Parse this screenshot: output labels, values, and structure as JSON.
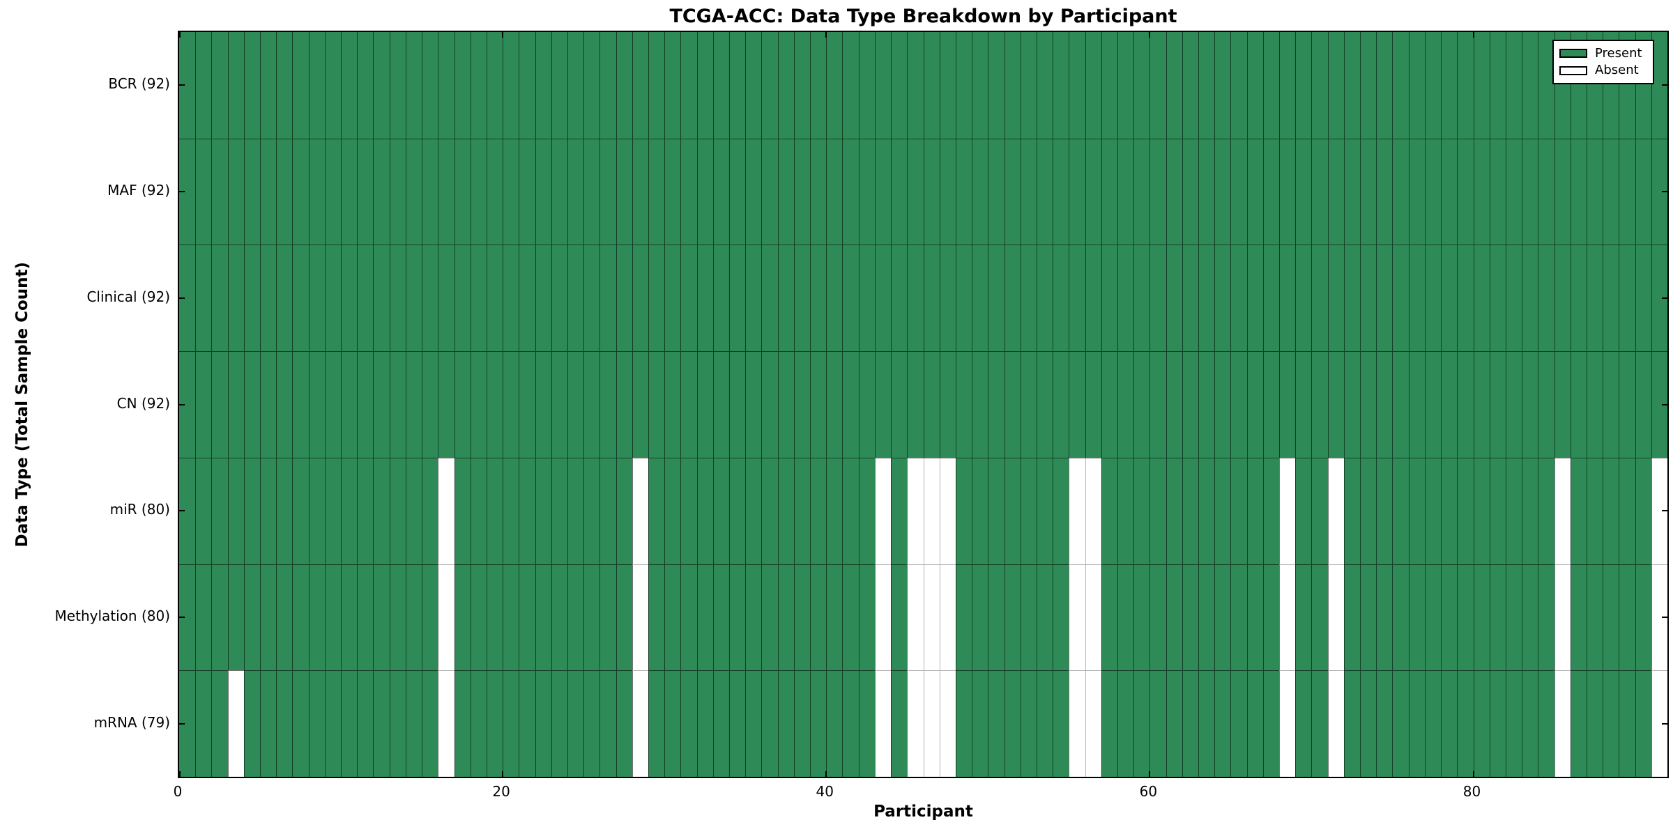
{
  "title": "TCGA-ACC: Data Type Breakdown by Participant",
  "xlabel": "Participant",
  "ylabel": "Data Type (Total Sample Count)",
  "legend": {
    "items": [
      {
        "label": "Present",
        "color": "#2e8b57"
      },
      {
        "label": "Absent",
        "color": "#ffffff"
      }
    ]
  },
  "colors": {
    "present_fill": "#2e8b57",
    "absent_fill": "#ffffff",
    "present_edge": "rgba(0,0,0,0.55)",
    "absent_edge": "#b5b5b5",
    "axis": "#000000"
  },
  "chart_data": {
    "type": "heatmap",
    "xlabel": "Participant",
    "ylabel": "Data Type (Total Sample Count)",
    "n_participants": 92,
    "x_ticks": [
      0,
      20,
      40,
      60,
      80
    ],
    "x_range": [
      0,
      92
    ],
    "grid": true,
    "legend_position": "upper right",
    "value_encoding": {
      "present": "green filled cell",
      "absent": "white cell"
    },
    "rows": [
      {
        "label": "BCR (92)",
        "data_type": "BCR",
        "present_count": 92,
        "absent_participants": []
      },
      {
        "label": "MAF (92)",
        "data_type": "MAF",
        "present_count": 92,
        "absent_participants": []
      },
      {
        "label": "Clinical (92)",
        "data_type": "Clinical",
        "present_count": 92,
        "absent_participants": []
      },
      {
        "label": "CN (92)",
        "data_type": "CN",
        "present_count": 92,
        "absent_participants": []
      },
      {
        "label": "miR (80)",
        "data_type": "miR",
        "present_count": 80,
        "absent_participants": [
          16,
          28,
          43,
          45,
          46,
          47,
          55,
          56,
          68,
          71,
          85,
          91
        ]
      },
      {
        "label": "Methylation (80)",
        "data_type": "Methylation",
        "present_count": 80,
        "absent_participants": [
          16,
          28,
          43,
          45,
          46,
          47,
          55,
          56,
          68,
          71,
          85,
          91
        ]
      },
      {
        "label": "mRNA (79)",
        "data_type": "mRNA",
        "present_count": 79,
        "absent_participants": [
          3,
          16,
          28,
          43,
          45,
          46,
          47,
          55,
          56,
          68,
          71,
          85,
          91
        ]
      }
    ]
  }
}
